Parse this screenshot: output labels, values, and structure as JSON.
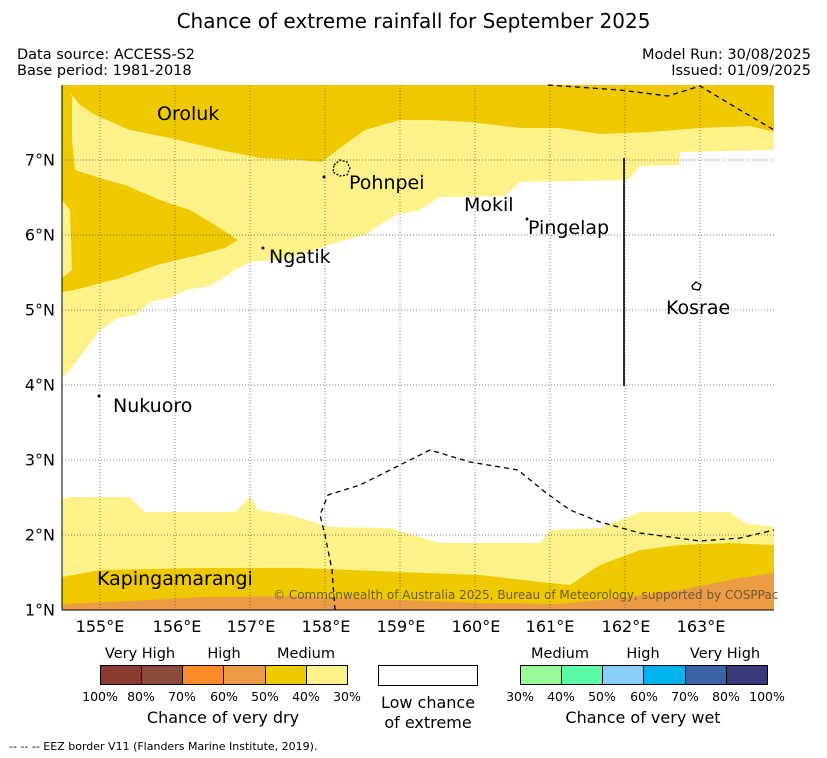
{
  "title": "Chance of extreme rainfall for September 2025",
  "meta": {
    "data_source": "Data source: ACCESS-S2",
    "base_period": "Base period: 1981-2018",
    "model_run": "Model Run: 30/08/2025",
    "issued": "Issued: 01/09/2025"
  },
  "map": {
    "lon_labels": [
      "155°E",
      "156°E",
      "157°E",
      "158°E",
      "159°E",
      "160°E",
      "161°E",
      "162°E",
      "163°E"
    ],
    "lat_labels": [
      "7°N",
      "6°N",
      "5°N",
      "4°N",
      "3°N",
      "2°N",
      "1°N"
    ],
    "places": [
      "Oroluk",
      "Pohnpei",
      "Mokil",
      "Pingelap",
      "Ngatik",
      "Kosrae",
      "Nukuoro",
      "Kapingamarangi"
    ],
    "copyright": "© Commonwealth of Australia 2025, Bureau of Meteorology, supported by COSPPac",
    "eez_note": "-- -- -- EEZ border V11 (Flanders Marine Institute, 2019).",
    "colors": {
      "medium_dry": "#eec900",
      "low_dry": "#fdf28a",
      "high_dry": "#ec9c45"
    }
  },
  "legend": {
    "dry": {
      "heads": [
        "Very High",
        "High",
        "Medium"
      ],
      "ticks": [
        "100%",
        "80%",
        "70%",
        "60%",
        "50%",
        "40%",
        "30%"
      ],
      "colors": [
        "#8b3a32",
        "#8b4a3a",
        "#fd8a28",
        "#ec9c45",
        "#eec900",
        "#fdf28a"
      ],
      "caption": "Chance of very dry"
    },
    "none": {
      "line1": "Low chance",
      "line2": "of extreme"
    },
    "wet": {
      "heads": [
        "Medium",
        "High",
        "Very High"
      ],
      "ticks": [
        "30%",
        "40%",
        "50%",
        "60%",
        "70%",
        "80%",
        "100%"
      ],
      "colors": [
        "#98fb98",
        "#5afca8",
        "#87cefa",
        "#00b2ee",
        "#3a63a8",
        "#3a3a7a"
      ],
      "caption": "Chance of very wet"
    }
  }
}
